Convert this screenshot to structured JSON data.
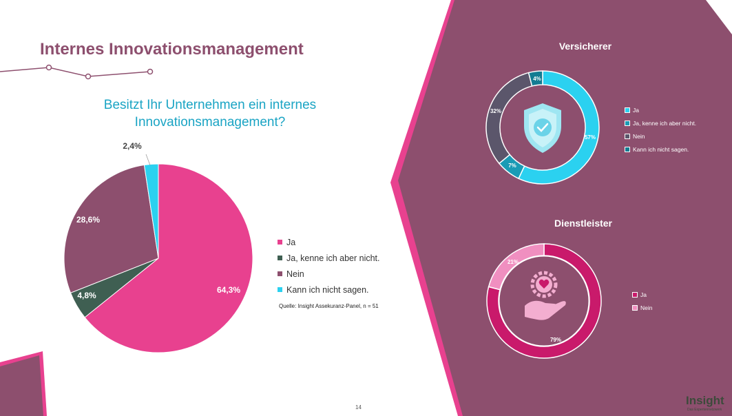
{
  "slide": {
    "title": "Internes Innovationsmanagement",
    "question_line1": "Besitzt Ihr Unternehmen ein internes",
    "question_line2": "Innovationsmanagement?",
    "source": "Quelle: Insight Assekuranz-Panel, n = 51",
    "page_number": "14",
    "logo_text": "Insight",
    "logo_sub": "Das Expertennetzwerk",
    "colors": {
      "frame_pink": "#e8418f",
      "panel_plum": "#8d4f6e",
      "title_plum": "#8d4f6e",
      "question_cyan": "#1aa4c4"
    }
  },
  "chart_data": [
    {
      "type": "pie",
      "categories": [
        "Ja",
        "Ja, kenne ich aber nicht.",
        "Nein",
        "Kann ich nicht sagen."
      ],
      "values": [
        64.3,
        4.8,
        28.6,
        2.4
      ],
      "data_labels": [
        "64,3%",
        "4,8%",
        "28,6%",
        "2,4%"
      ],
      "colors": [
        "#e8418f",
        "#3f5f52",
        "#8d4f6e",
        "#2bd1f0"
      ],
      "legend_position": "right"
    },
    {
      "type": "pie",
      "title": "Versicherer",
      "categories": [
        "Ja",
        "Ja, kenne ich aber nicht.",
        "Nein",
        "Kann ich nicht sagen."
      ],
      "values": [
        57,
        7,
        32,
        4
      ],
      "data_labels": [
        "57%",
        "7%",
        "32%",
        "4%"
      ],
      "colors": [
        "#2bd1f0",
        "#1a9bb5",
        "#5b566b",
        "#137c92"
      ],
      "icon": "shield-check-icon",
      "legend_position": "right"
    },
    {
      "type": "pie",
      "title": "Dienstleister",
      "categories": [
        "Ja",
        "Nein"
      ],
      "values": [
        79,
        21
      ],
      "data_labels": [
        "79%",
        "21%"
      ],
      "colors": [
        "#c91a6b",
        "#f08fc0"
      ],
      "icon": "hand-heart-icon",
      "legend_position": "right"
    }
  ]
}
